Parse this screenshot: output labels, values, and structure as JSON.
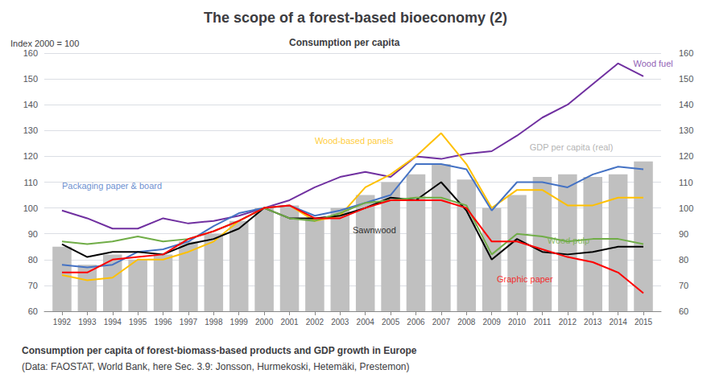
{
  "chart_data": {
    "type": "bar",
    "title": "The scope of a forest-based bioeconomy (2)",
    "subtitle": "Consumption per capita",
    "ylabel": "Index 2000 = 100",
    "caption": [
      "Consumption per capita of forest-biomass-based products and GDP growth in Europe",
      "(Data: FAOSTAT, World Bank, here Sec. 3.9: Jonsson, Hurmekoski, Hetemäki, Prestemon)"
    ],
    "x": [
      1992,
      1993,
      1994,
      1995,
      1996,
      1997,
      1998,
      1999,
      2000,
      2001,
      2002,
      2003,
      2004,
      2005,
      2006,
      2007,
      2008,
      2009,
      2010,
      2011,
      2012,
      2013,
      2014,
      2015
    ],
    "xlim": [
      1991.3,
      2015.7
    ],
    "xticks": [
      1992,
      1993,
      1994,
      1995,
      1996,
      1997,
      1998,
      1999,
      2000,
      2001,
      2002,
      2003,
      2004,
      2005,
      2006,
      2007,
      2008,
      2009,
      2010,
      2011,
      2012,
      2013,
      2014,
      2015
    ],
    "ylim": [
      60,
      160
    ],
    "yticks": [
      60,
      70,
      80,
      90,
      100,
      110,
      120,
      130,
      140,
      150,
      160
    ],
    "y2lim": [
      60,
      160
    ],
    "y2ticks": [
      60,
      70,
      80,
      90,
      100,
      110,
      120,
      130,
      140,
      150,
      160
    ],
    "grid": true,
    "series": [
      {
        "name": "GDP per capita (real)",
        "type": "bar",
        "color": "#C0C0C0",
        "values": [
          85,
          78,
          82,
          80,
          82,
          87,
          90,
          95,
          100,
          101,
          96,
          100,
          105,
          110,
          113,
          117,
          111,
          100,
          105,
          112,
          113,
          112,
          113,
          118
        ]
      },
      {
        "name": "Wood fuel",
        "type": "line",
        "color": "#7030A0",
        "values": [
          99,
          96,
          92,
          92,
          96,
          94,
          95,
          97,
          100,
          103,
          108,
          112,
          114,
          112,
          120,
          119,
          121,
          122,
          128,
          135,
          140,
          148,
          156,
          151
        ]
      },
      {
        "name": "Wood-based panels",
        "type": "line",
        "color": "#FFC000",
        "values": [
          74,
          72,
          73,
          80,
          80,
          83,
          87,
          95,
          100,
          101,
          95,
          97,
          108,
          113,
          120,
          129,
          117,
          100,
          107,
          107,
          101,
          101,
          104,
          104
        ]
      },
      {
        "name": "Packaging paper & board",
        "type": "line",
        "color": "#4472C4",
        "values": [
          78,
          77,
          78,
          83,
          84,
          87,
          93,
          98,
          100,
          101,
          97,
          99,
          102,
          105,
          117,
          117,
          115,
          99,
          110,
          110,
          108,
          113,
          116,
          115
        ]
      },
      {
        "name": "Sawnwood",
        "type": "line",
        "color": "#000000",
        "values": [
          86,
          81,
          83,
          83,
          82,
          86,
          88,
          92,
          100,
          96,
          96,
          97,
          100,
          104,
          103,
          110,
          99,
          80,
          88,
          83,
          82,
          83,
          85,
          85
        ]
      },
      {
        "name": "Wood pulp",
        "type": "line",
        "color": "#70AD47",
        "values": [
          87,
          86,
          87,
          89,
          87,
          88,
          91,
          95,
          100,
          96,
          95,
          98,
          102,
          103,
          104,
          104,
          101,
          82,
          90,
          89,
          87,
          88,
          88,
          86
        ]
      },
      {
        "name": "Graphic paper",
        "type": "line",
        "color": "#FF0000",
        "values": [
          75,
          75,
          80,
          81,
          82,
          88,
          91,
          95,
          100,
          101,
          96,
          96,
          100,
          103,
          103,
          103,
          100,
          87,
          87,
          84,
          81,
          79,
          75,
          67
        ]
      }
    ],
    "annotations": [
      {
        "text": "Wood fuel",
        "x": 2014.6,
        "y": 156,
        "color": "#7030A0"
      },
      {
        "text": "Wood-based panels",
        "x": 2002.0,
        "y": 126,
        "color": "#FFC000"
      },
      {
        "text": "Packaging paper & board",
        "x": 1992.0,
        "y": 108.5,
        "color": "#4472C4"
      },
      {
        "text": "Sawnwood",
        "x": 2003.5,
        "y": 91.5,
        "color": "#000000"
      },
      {
        "text": "Wood pulp",
        "x": 2011.2,
        "y": 87.5,
        "color": "#70AD47"
      },
      {
        "text": "Graphic paper",
        "x": 2009.2,
        "y": 72.5,
        "color": "#FF0000"
      },
      {
        "text": "GDP per capita (real)",
        "x": 2010.5,
        "y": 123.5,
        "color": "#A0A0A0"
      }
    ]
  }
}
